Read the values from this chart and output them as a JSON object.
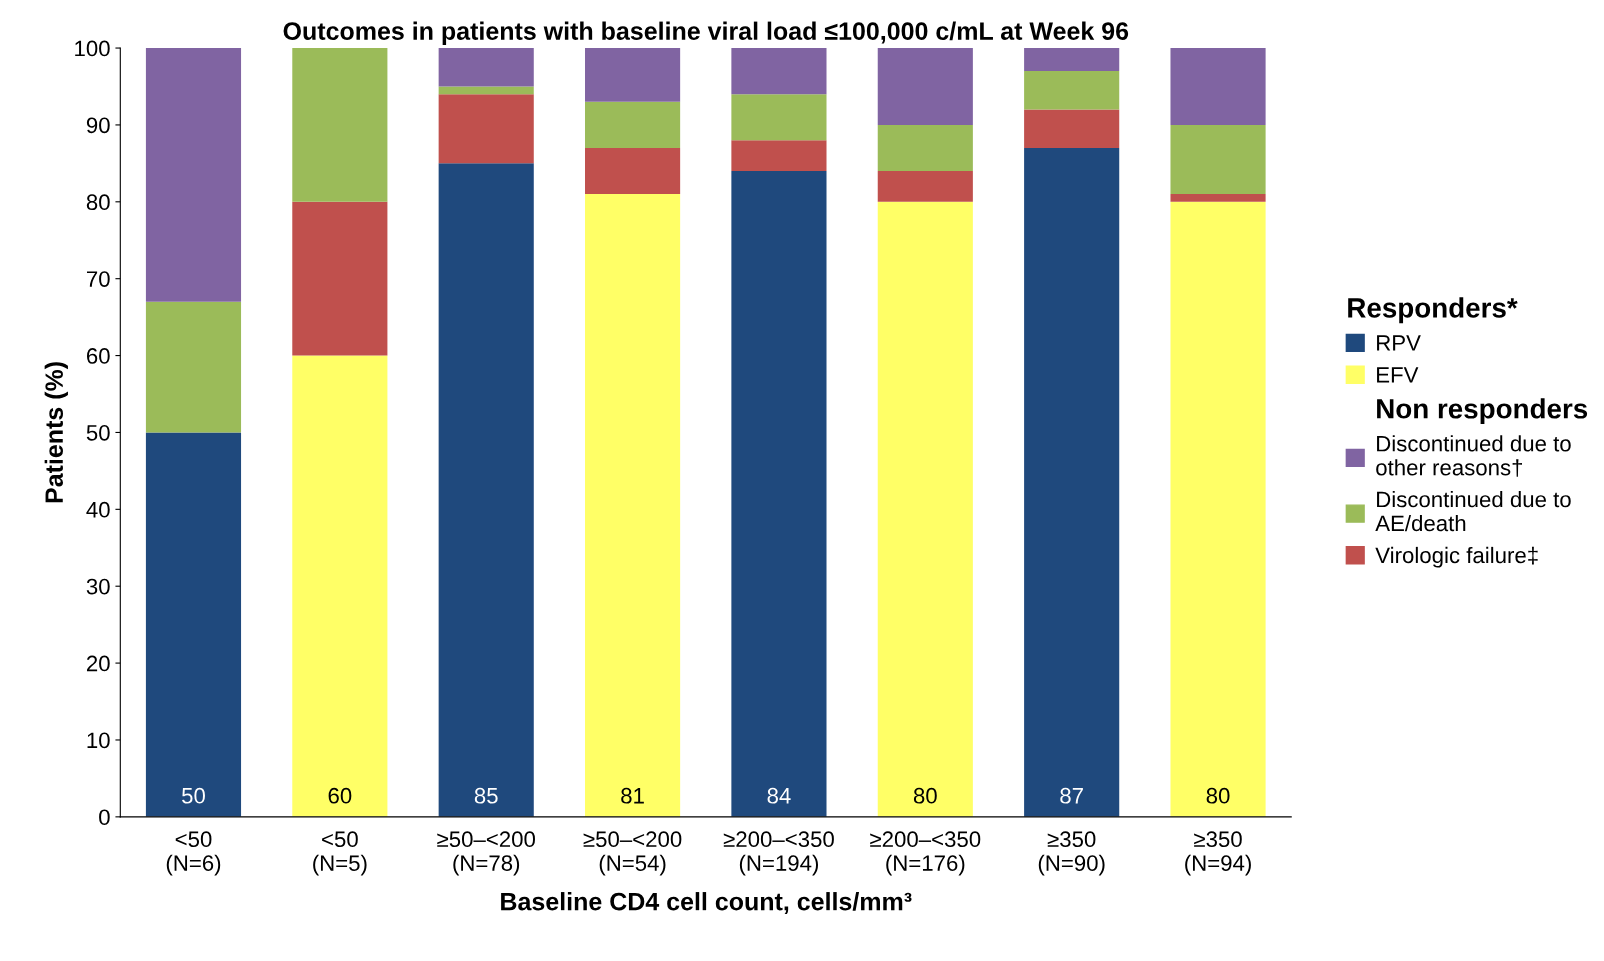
{
  "chart_data": {
    "type": "bar",
    "stacked": true,
    "title": "Outcomes in patients with baseline viral load ≤100,000 c/mL at Week 96",
    "xlabel": "Baseline CD4 cell count, cells/mm³",
    "ylabel": "Patients (%)",
    "categories": [
      "<50\n(N=6)",
      "<50\n(N=5)",
      "≥50–<200\n(N=78)",
      "≥50–<200\n(N=54)",
      "≥200–<350\n(N=194)",
      "≥200–<350\n(N=176)",
      "≥350\n(N=90)",
      "≥350\n(N=94)"
    ],
    "series": [
      {
        "name": "RPV",
        "color": "#1f497d",
        "values": [
          50,
          null,
          85,
          null,
          84,
          null,
          87,
          null
        ],
        "value_labels": [
          "50",
          null,
          "85",
          null,
          "84",
          null,
          "87",
          null
        ]
      },
      {
        "name": "EFV",
        "color": "#ffff66",
        "values": [
          null,
          60,
          null,
          81,
          null,
          80,
          null,
          80
        ],
        "value_labels": [
          null,
          "60",
          null,
          "81",
          null,
          "80",
          null,
          "80"
        ]
      },
      {
        "name": "Virologic failure‡",
        "color": "#c0504d",
        "values": [
          0,
          20,
          9,
          6,
          4,
          4,
          5,
          1
        ]
      },
      {
        "name": "Discontinued due to\nAE/death",
        "color": "#9bbb59",
        "values": [
          17,
          20,
          1,
          6,
          6,
          6,
          5,
          9
        ]
      },
      {
        "name": "Discontinued due to\nother reasons†",
        "color": "#8064a2",
        "values": [
          33,
          0,
          5,
          7,
          6,
          10,
          3,
          10
        ]
      }
    ],
    "ylim": [
      0,
      100
    ],
    "yticks": [
      0,
      10,
      20,
      30,
      40,
      50,
      60,
      70,
      80,
      90,
      100
    ],
    "legend": "right",
    "legend_title": "Responders*",
    "annotations": [
      "Non responders"
    ],
    "grid": false
  }
}
